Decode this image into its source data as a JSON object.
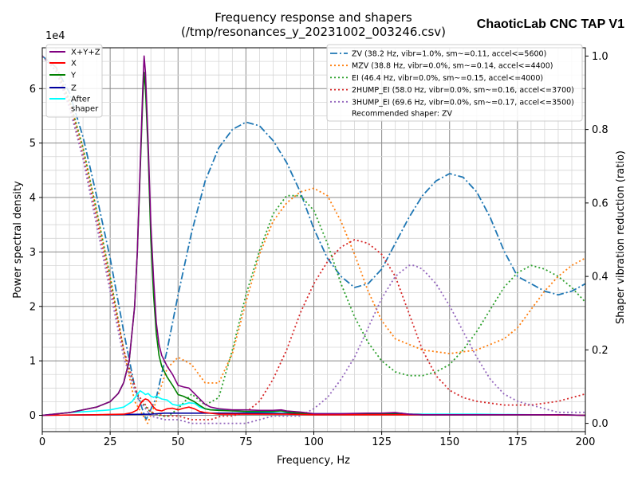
{
  "chart_data": {
    "type": "line",
    "title": "Frequency response and shapers",
    "subtitle": "(/tmp/resonances_y_20231002_003246.csv)",
    "brand": "ChaoticLab CNC TAP V1",
    "xlabel": "Frequency, Hz",
    "ylabel": "Power spectral density",
    "y2label": "Shaper vibration reduction (ratio)",
    "y_exponent_label": "1e4",
    "xlim": [
      0,
      200
    ],
    "ylim": [
      -0.3,
      6.75
    ],
    "y2lim": [
      -0.0225,
      1.0225
    ],
    "x_ticks": [
      0,
      25,
      50,
      75,
      100,
      125,
      150,
      175,
      200
    ],
    "y_ticks": [
      0,
      1,
      2,
      3,
      4,
      5,
      6
    ],
    "y2_ticks": [
      0.0,
      0.2,
      0.4,
      0.6,
      0.8,
      1.0
    ],
    "x_tick_labels": [
      "0",
      "25",
      "50",
      "75",
      "100",
      "125",
      "150",
      "175",
      "200"
    ],
    "y_tick_labels": [
      "0",
      "1",
      "2",
      "3",
      "4",
      "5",
      "6"
    ],
    "y2_tick_labels": [
      "0.0",
      "0.2",
      "0.4",
      "0.6",
      "0.8",
      "1.0"
    ],
    "grid": true,
    "legend_left": {
      "placement": "upper-left",
      "entries": [
        "X+Y+Z",
        "X",
        "Y",
        "Z",
        "After\nshaper"
      ]
    },
    "legend_right": {
      "placement": "upper-right",
      "entries": [
        "ZV (38.2 Hz, vibr=1.0%, sm~=0.11, accel<=5600)",
        "MZV (38.8 Hz, vibr=0.0%, sm~=0.14, accel<=4400)",
        "EI (46.4 Hz, vibr=0.0%, sm~=0.15, accel<=4000)",
        "2HUMP_EI (58.0 Hz, vibr=0.0%, sm~=0.16, accel<=3700)",
        "3HUMP_EI (69.6 Hz, vibr=0.0%, sm~=0.17, accel<=3500)"
      ],
      "note": "Recommended shaper: ZV"
    },
    "psd_series": [
      {
        "name": "X+Y+Z",
        "color": "#800080",
        "x": [
          0,
          10,
          20,
          25,
          28,
          30,
          32,
          34,
          35,
          36,
          37,
          37.5,
          38,
          39,
          40,
          41,
          42,
          43,
          44,
          45,
          46,
          48,
          50,
          52,
          54,
          56,
          58,
          60,
          62,
          65,
          70,
          75,
          80,
          85,
          88,
          90,
          95,
          100,
          110,
          120,
          125,
          130,
          135,
          140,
          150,
          160,
          170,
          180,
          190,
          200
        ],
        "y": [
          0,
          0.05,
          0.15,
          0.25,
          0.4,
          0.6,
          1.0,
          2.0,
          3.0,
          4.5,
          6.0,
          6.6,
          6.3,
          5.0,
          3.5,
          2.5,
          1.7,
          1.3,
          1.1,
          1.0,
          0.9,
          0.75,
          0.55,
          0.52,
          0.5,
          0.4,
          0.3,
          0.2,
          0.15,
          0.12,
          0.1,
          0.1,
          0.09,
          0.09,
          0.1,
          0.08,
          0.06,
          0.03,
          0.03,
          0.04,
          0.04,
          0.05,
          0.02,
          0.01,
          0.01,
          0.01,
          0.01,
          0.01,
          0.01,
          0
        ]
      },
      {
        "name": "X",
        "color": "#ff0000",
        "x": [
          0,
          20,
          30,
          33,
          35,
          36,
          37,
          38,
          39,
          40,
          41,
          42,
          44,
          46,
          48,
          50,
          52,
          54,
          56,
          58,
          60,
          65,
          70,
          80,
          90,
          100,
          110,
          120,
          130,
          140,
          160,
          180,
          200
        ],
        "y": [
          0,
          0.01,
          0.02,
          0.05,
          0.1,
          0.2,
          0.27,
          0.3,
          0.28,
          0.22,
          0.15,
          0.1,
          0.08,
          0.12,
          0.13,
          0.1,
          0.13,
          0.15,
          0.12,
          0.07,
          0.05,
          0.02,
          0.02,
          0.02,
          0.02,
          0.01,
          0.01,
          0.01,
          0.01,
          0.01,
          0.01,
          0.01,
          0
        ]
      },
      {
        "name": "Y",
        "color": "#008000",
        "x": [
          0,
          10,
          20,
          25,
          28,
          30,
          32,
          34,
          35,
          36,
          37,
          37.5,
          38,
          39,
          40,
          41,
          42,
          43,
          44,
          45,
          46,
          48,
          50,
          52,
          54,
          56,
          58,
          60,
          62,
          65,
          70,
          75,
          80,
          85,
          88,
          90,
          95,
          100,
          110,
          120,
          130,
          140,
          150,
          160,
          170,
          180,
          190,
          200
        ],
        "y": [
          0,
          0.05,
          0.15,
          0.25,
          0.4,
          0.6,
          1.0,
          2.0,
          3.0,
          4.4,
          5.8,
          6.3,
          6.0,
          4.8,
          3.2,
          2.2,
          1.5,
          1.1,
          0.9,
          0.8,
          0.7,
          0.55,
          0.38,
          0.35,
          0.3,
          0.25,
          0.18,
          0.12,
          0.1,
          0.09,
          0.08,
          0.07,
          0.07,
          0.07,
          0.08,
          0.06,
          0.04,
          0.02,
          0.02,
          0.02,
          0.02,
          0.01,
          0.01,
          0.01,
          0.01,
          0.01,
          0.01,
          0
        ]
      },
      {
        "name": "Z",
        "color": "#0000a0",
        "x": [
          0,
          20,
          40,
          45,
          50,
          60,
          70,
          80,
          90,
          100,
          110,
          120,
          130,
          132,
          135,
          140,
          150,
          160,
          170,
          180,
          190,
          200
        ],
        "y": [
          0,
          0.01,
          0.02,
          0.04,
          0.04,
          0.04,
          0.04,
          0.04,
          0.03,
          0.02,
          0.02,
          0.03,
          0.04,
          0.04,
          0.02,
          0.01,
          0.01,
          0.01,
          0.01,
          0.01,
          0.01,
          0
        ]
      },
      {
        "name": "After shaper",
        "color": "#00ffff",
        "x": [
          0,
          10,
          20,
          25,
          30,
          33,
          35,
          36,
          37,
          38,
          39,
          40,
          41,
          42,
          44,
          46,
          48,
          50,
          52,
          54,
          56,
          58,
          60,
          62,
          65,
          70,
          80,
          90,
          100,
          120,
          140,
          160,
          180,
          200
        ],
        "y": [
          0,
          0.05,
          0.08,
          0.1,
          0.15,
          0.25,
          0.38,
          0.45,
          0.42,
          0.38,
          0.4,
          0.35,
          0.33,
          0.35,
          0.3,
          0.28,
          0.2,
          0.18,
          0.2,
          0.23,
          0.22,
          0.15,
          0.12,
          0.1,
          0.1,
          0.08,
          0.05,
          0.04,
          0.03,
          0.03,
          0.02,
          0.02,
          0.01,
          0
        ]
      }
    ],
    "shaper_series": [
      {
        "name": "ZV",
        "color": "#1f77b4",
        "dash": "dashdot",
        "x": [
          0,
          5,
          10,
          15,
          20,
          25,
          30,
          34,
          38.2,
          42,
          46,
          50,
          55,
          60,
          65,
          70,
          75,
          80,
          85,
          90,
          95,
          100,
          105,
          110,
          115,
          120,
          125,
          130,
          135,
          140,
          145,
          150,
          155,
          160,
          165,
          170,
          175,
          180,
          185,
          190,
          195,
          200
        ],
        "y": [
          1.0,
          0.97,
          0.9,
          0.78,
          0.62,
          0.45,
          0.25,
          0.1,
          0.01,
          0.07,
          0.2,
          0.35,
          0.52,
          0.66,
          0.75,
          0.8,
          0.82,
          0.81,
          0.77,
          0.71,
          0.63,
          0.53,
          0.45,
          0.4,
          0.37,
          0.38,
          0.42,
          0.49,
          0.56,
          0.62,
          0.66,
          0.68,
          0.67,
          0.63,
          0.56,
          0.47,
          0.4,
          0.38,
          0.36,
          0.35,
          0.36,
          0.38
        ]
      },
      {
        "name": "MZV",
        "color": "#ff7f0e",
        "dash": "dotted",
        "x": [
          0,
          5,
          10,
          15,
          20,
          25,
          30,
          34,
          38.8,
          42,
          46,
          50,
          55,
          60,
          65,
          70,
          75,
          80,
          85,
          90,
          95,
          100,
          105,
          110,
          115,
          120,
          125,
          130,
          140,
          150,
          160,
          170,
          175,
          180,
          185,
          190,
          195,
          200
        ],
        "y": [
          1.0,
          0.97,
          0.88,
          0.75,
          0.58,
          0.4,
          0.2,
          0.06,
          0.0,
          0.06,
          0.15,
          0.18,
          0.16,
          0.11,
          0.11,
          0.19,
          0.33,
          0.46,
          0.55,
          0.6,
          0.63,
          0.64,
          0.62,
          0.55,
          0.46,
          0.36,
          0.28,
          0.23,
          0.2,
          0.19,
          0.2,
          0.23,
          0.26,
          0.31,
          0.36,
          0.4,
          0.43,
          0.45
        ]
      },
      {
        "name": "EI",
        "color": "#2ca02c",
        "dash": "dotted",
        "x": [
          0,
          5,
          10,
          15,
          20,
          25,
          30,
          35,
          40,
          44,
          46.4,
          50,
          55,
          60,
          65,
          70,
          75,
          80,
          85,
          90,
          95,
          100,
          105,
          110,
          115,
          120,
          125,
          130,
          135,
          140,
          145,
          150,
          155,
          160,
          165,
          170,
          175,
          180,
          185,
          190,
          195,
          200
        ],
        "y": [
          1.0,
          0.96,
          0.88,
          0.75,
          0.58,
          0.4,
          0.2,
          0.07,
          0.03,
          0.02,
          0.02,
          0.04,
          0.08,
          0.05,
          0.07,
          0.2,
          0.35,
          0.47,
          0.57,
          0.62,
          0.62,
          0.58,
          0.49,
          0.38,
          0.29,
          0.22,
          0.17,
          0.14,
          0.13,
          0.13,
          0.14,
          0.16,
          0.2,
          0.25,
          0.31,
          0.37,
          0.41,
          0.43,
          0.42,
          0.4,
          0.37,
          0.33
        ]
      },
      {
        "name": "2HUMP_EI",
        "color": "#d62728",
        "dash": "dotted",
        "x": [
          0,
          5,
          10,
          15,
          20,
          25,
          30,
          35,
          40,
          45,
          50,
          55,
          58,
          62,
          66,
          70,
          75,
          80,
          85,
          90,
          95,
          100,
          105,
          110,
          115,
          120,
          125,
          130,
          135,
          140,
          145,
          150,
          155,
          160,
          170,
          180,
          190,
          200
        ],
        "y": [
          1.0,
          0.96,
          0.87,
          0.73,
          0.56,
          0.38,
          0.2,
          0.08,
          0.03,
          0.02,
          0.02,
          0.01,
          0.01,
          0.01,
          0.02,
          0.02,
          0.03,
          0.06,
          0.12,
          0.2,
          0.3,
          0.38,
          0.44,
          0.48,
          0.5,
          0.49,
          0.46,
          0.4,
          0.3,
          0.2,
          0.13,
          0.09,
          0.07,
          0.06,
          0.05,
          0.05,
          0.06,
          0.08
        ]
      },
      {
        "name": "3HUMP_EI",
        "color": "#9467bd",
        "dash": "dotted",
        "x": [
          0,
          5,
          10,
          15,
          20,
          25,
          30,
          35,
          40,
          45,
          50,
          55,
          60,
          65,
          70,
          75,
          80,
          85,
          90,
          95,
          100,
          105,
          110,
          115,
          120,
          125,
          130,
          135,
          137,
          140,
          145,
          150,
          155,
          160,
          165,
          170,
          175,
          180,
          185,
          190,
          195,
          200
        ],
        "y": [
          1.0,
          0.96,
          0.86,
          0.72,
          0.54,
          0.36,
          0.18,
          0.07,
          0.02,
          0.01,
          0.01,
          0.0,
          0.0,
          0.0,
          0.0,
          0.0,
          0.01,
          0.02,
          0.02,
          0.02,
          0.04,
          0.07,
          0.12,
          0.18,
          0.26,
          0.34,
          0.4,
          0.43,
          0.43,
          0.42,
          0.38,
          0.32,
          0.25,
          0.18,
          0.12,
          0.08,
          0.06,
          0.05,
          0.04,
          0.03,
          0.03,
          0.03
        ]
      }
    ]
  }
}
